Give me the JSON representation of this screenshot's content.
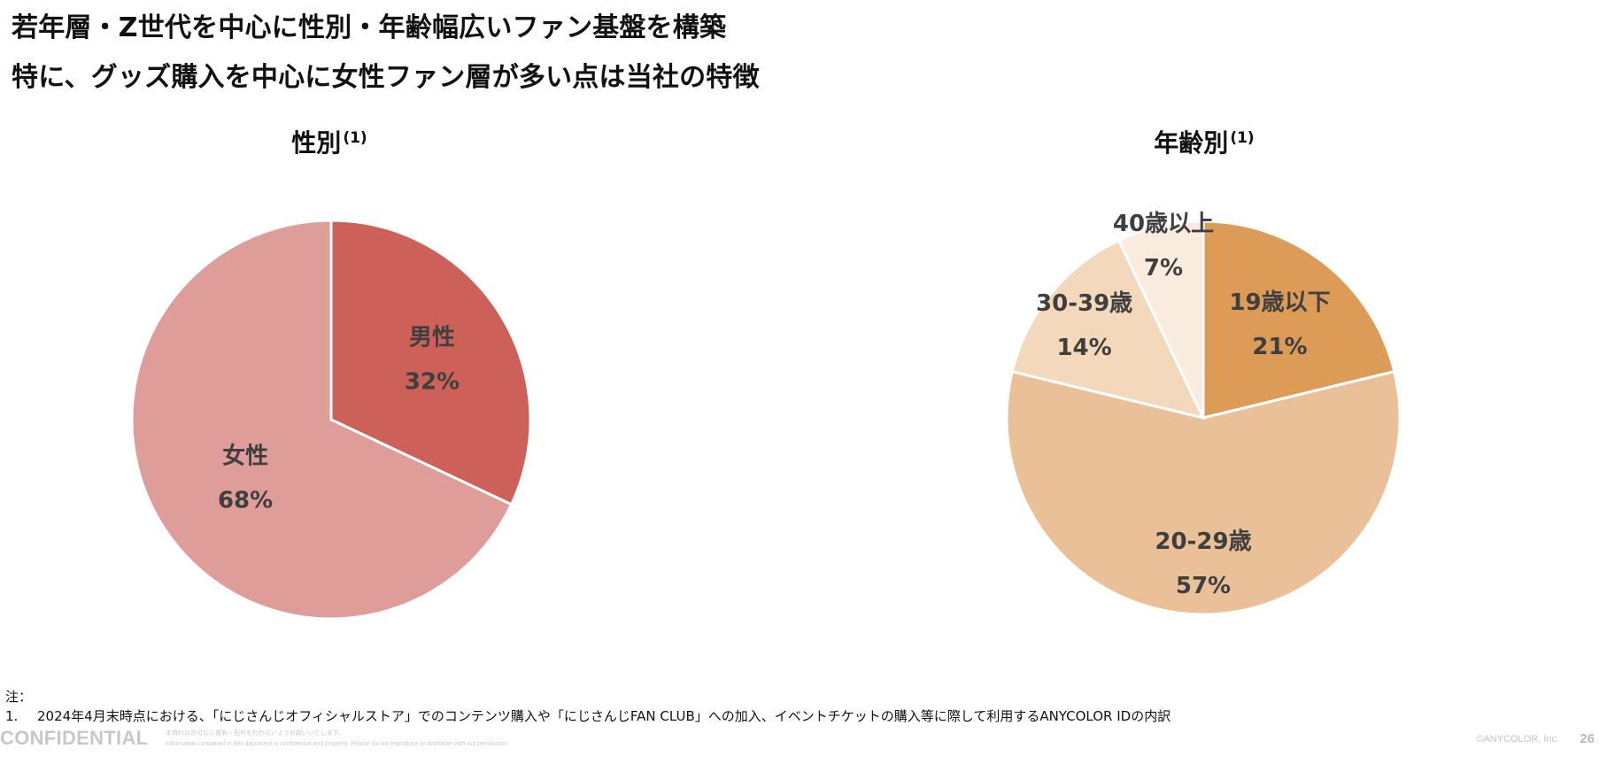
{
  "page": {
    "title_line1": "若年層・Z世代を中心に性別・年齢幅広いファン基盤を構築",
    "title_line2": "特に、グッズ購入を中心に女性ファン層が多い点は当社の特徴",
    "footnote_label": "注：",
    "footnote_number": "1.",
    "footnote_text": "2024年4月末時点における、「にじさんじオフィシャルストア」でのコンテンツ購入や「にじさんじFAN CLUB」への加入、イベントチケットの購入等に際して利用するANYCOLOR IDの内訳",
    "confidential": "CONFIDENTIAL",
    "disclaimer_jp": "本資料は許可なく複製・配布を行わないようお願いいたします。",
    "disclaimer_en": "Information contained in this document is confidential and property. Please do not reproduce or distribute with out permission.",
    "copyright": "©ANYCOLOR, Inc.",
    "page_number": "26"
  },
  "chart_data": [
    {
      "type": "pie",
      "title": "性別",
      "title_note": "(1)",
      "start_angle_deg": 0,
      "direction": "clockwise",
      "slices": [
        {
          "label": "男性",
          "value": 32,
          "value_label": "32%",
          "color": "#cd6058"
        },
        {
          "label": "女性",
          "value": 68,
          "value_label": "68%",
          "color": "#df9d9a"
        }
      ]
    },
    {
      "type": "pie",
      "title": "年齢別",
      "title_note": "(1)",
      "start_angle_deg": 0,
      "direction": "clockwise",
      "slices": [
        {
          "label": "19歳以下",
          "value": 21,
          "value_label": "21%",
          "color": "#dc9c58"
        },
        {
          "label": "20-29歳",
          "value": 57,
          "value_label": "57%",
          "color": "#e9c097"
        },
        {
          "label": "30-39歳",
          "value": 14,
          "value_label": "14%",
          "color": "#f3d8bc"
        },
        {
          "label": "40歳以上",
          "value": 7,
          "value_label": "7%",
          "color": "#f9ebde"
        }
      ]
    }
  ]
}
